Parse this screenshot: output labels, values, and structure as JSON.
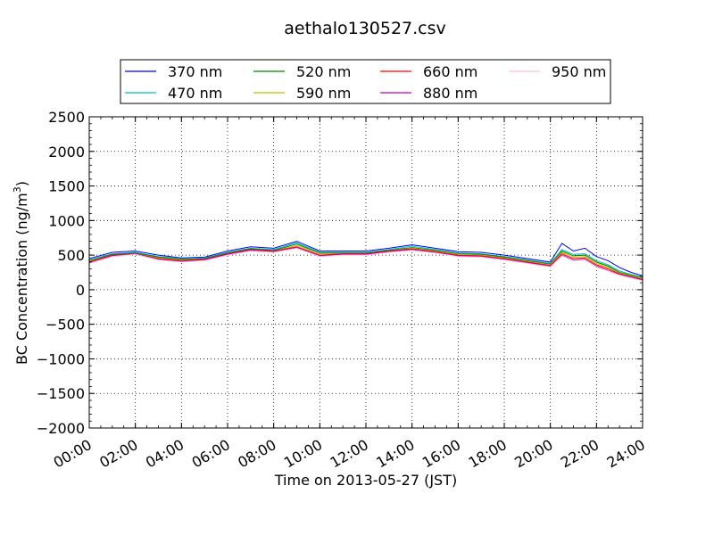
{
  "chart_data": {
    "type": "line",
    "title": "aethalo130527.csv",
    "xlabel": "Time on 2013-05-27 (JST)",
    "ylabel_main": "BC Concentration (ng/m",
    "ylabel_sup": "3",
    "ylabel_end": ")",
    "xlim": [
      "00:00",
      "24:00"
    ],
    "ylim": [
      -2000,
      2500
    ],
    "x_ticks": [
      "00:00",
      "02:00",
      "04:00",
      "06:00",
      "08:00",
      "10:00",
      "12:00",
      "14:00",
      "16:00",
      "18:00",
      "20:00",
      "22:00",
      "24:00"
    ],
    "y_ticks": [
      -2000,
      -1500,
      -1000,
      -500,
      0,
      500,
      1000,
      1500,
      2000,
      2500
    ],
    "y_tick_labels": [
      "−2000",
      "−1500",
      "−1000",
      "−500",
      "0",
      "500",
      "1000",
      "1500",
      "2000",
      "2500"
    ],
    "grid": true,
    "legend_placement": "top-center",
    "x": [
      "00:00",
      "01:00",
      "02:00",
      "03:00",
      "04:00",
      "05:00",
      "06:00",
      "07:00",
      "08:00",
      "09:00",
      "10:00",
      "11:00",
      "12:00",
      "13:00",
      "14:00",
      "15:00",
      "16:00",
      "17:00",
      "18:00",
      "19:00",
      "20:00",
      "20:30",
      "21:00",
      "21:30",
      "22:00",
      "22:30",
      "23:00",
      "23:30",
      "24:00"
    ],
    "series": [
      {
        "name": "370 nm",
        "color": "#0000ff",
        "values": [
          450,
          540,
          560,
          500,
          460,
          470,
          560,
          620,
          600,
          700,
          560,
          560,
          560,
          600,
          650,
          600,
          550,
          540,
          500,
          450,
          400,
          670,
          560,
          600,
          480,
          420,
          320,
          250,
          200
        ]
      },
      {
        "name": "470 nm",
        "color": "#00bfbf",
        "values": [
          430,
          520,
          540,
          480,
          450,
          460,
          540,
          600,
          580,
          680,
          540,
          540,
          540,
          580,
          630,
          580,
          530,
          520,
          480,
          430,
          380,
          580,
          510,
          520,
          420,
          360,
          270,
          220,
          180
        ]
      },
      {
        "name": "520 nm",
        "color": "#008000",
        "values": [
          420,
          510,
          530,
          470,
          440,
          450,
          530,
          590,
          570,
          660,
          530,
          530,
          530,
          570,
          610,
          570,
          520,
          510,
          470,
          420,
          370,
          560,
          490,
          500,
          400,
          340,
          250,
          210,
          170
        ]
      },
      {
        "name": "590 nm",
        "color": "#bfbf00",
        "values": [
          410,
          500,
          520,
          460,
          430,
          440,
          520,
          580,
          560,
          640,
          520,
          520,
          520,
          560,
          600,
          560,
          510,
          500,
          460,
          410,
          360,
          540,
          470,
          480,
          380,
          320,
          240,
          200,
          160
        ]
      },
      {
        "name": "660 nm",
        "color": "#ff0000",
        "values": [
          400,
          500,
          520,
          450,
          420,
          440,
          520,
          580,
          560,
          620,
          500,
          520,
          520,
          560,
          590,
          550,
          500,
          490,
          450,
          400,
          350,
          520,
          450,
          460,
          360,
          300,
          230,
          190,
          150
        ]
      },
      {
        "name": "880 nm",
        "color": "#bf00bf",
        "values": [
          390,
          490,
          520,
          440,
          410,
          430,
          510,
          570,
          550,
          610,
          490,
          510,
          510,
          550,
          580,
          540,
          490,
          480,
          440,
          390,
          340,
          500,
          430,
          440,
          340,
          280,
          220,
          180,
          140
        ]
      },
      {
        "name": "950 nm",
        "color": "#ffc0cb",
        "values": [
          380,
          480,
          510,
          430,
          400,
          420,
          500,
          560,
          540,
          600,
          480,
          500,
          500,
          540,
          570,
          530,
          480,
          470,
          430,
          380,
          330,
          490,
          420,
          430,
          330,
          270,
          210,
          170,
          130
        ]
      }
    ]
  }
}
